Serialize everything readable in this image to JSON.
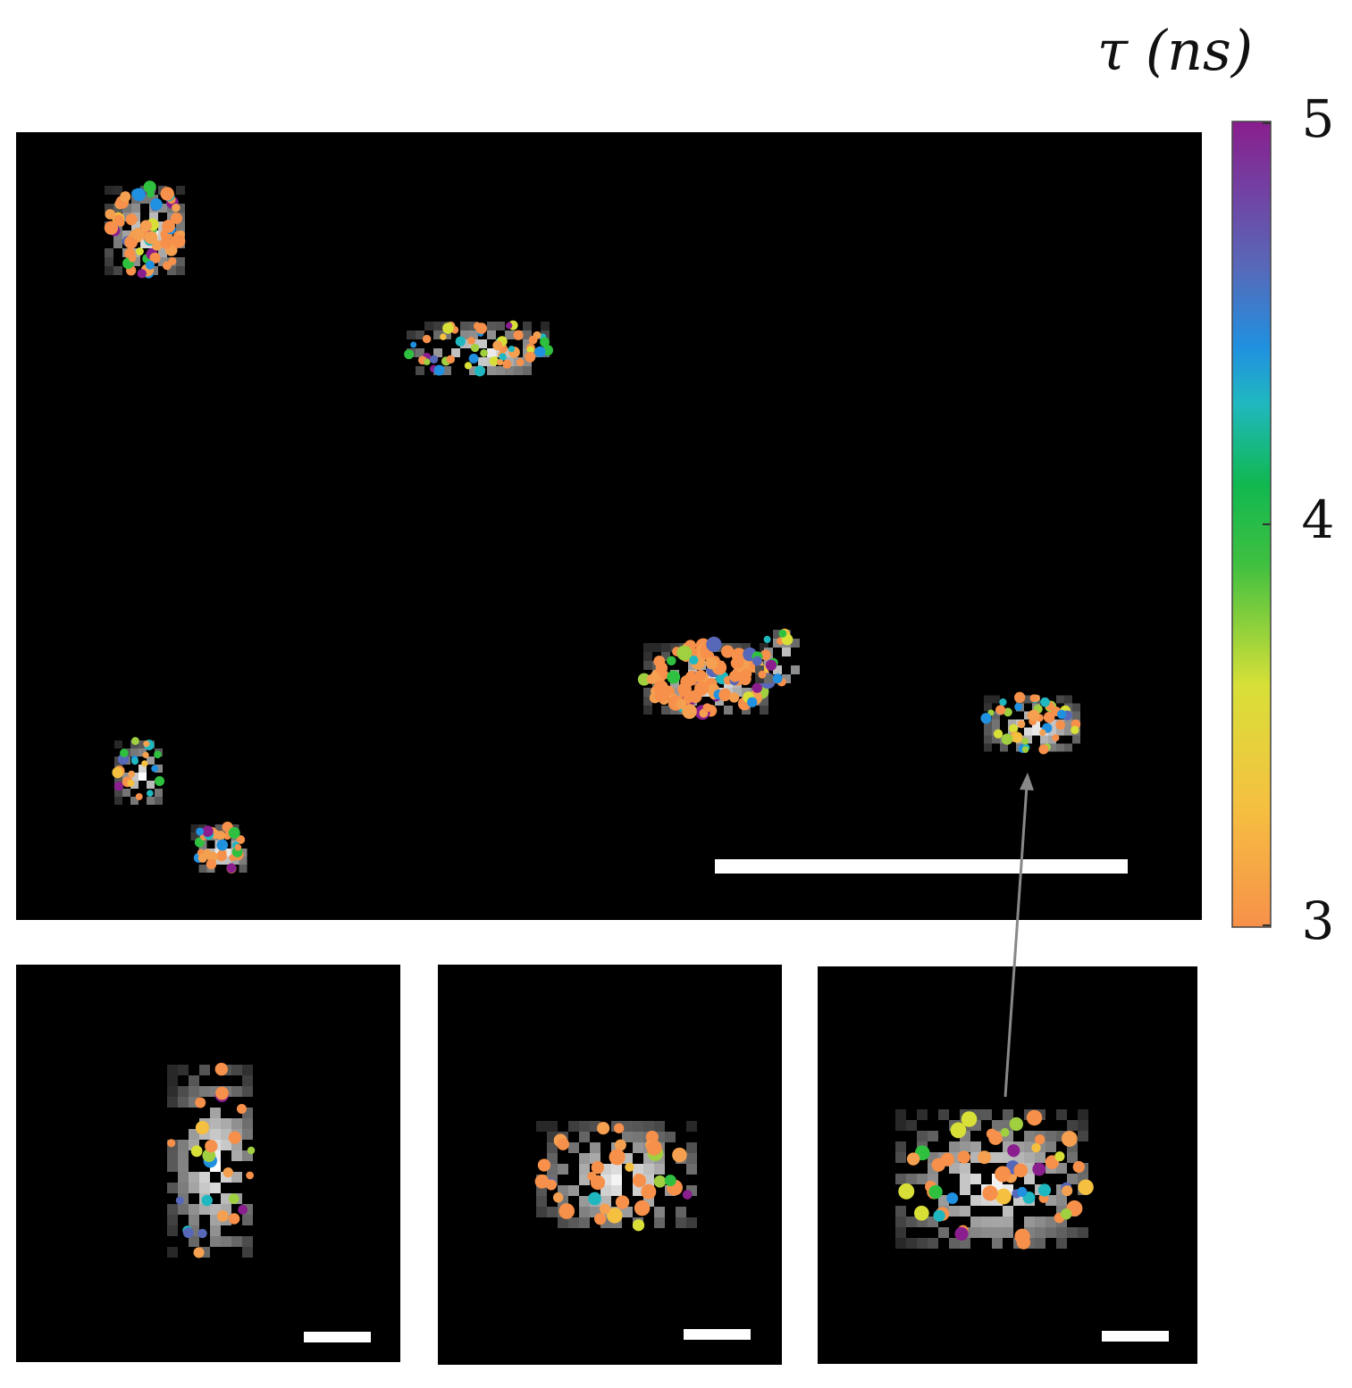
{
  "colorbar": {
    "label": "τ (ns)",
    "lim": [
      3,
      5
    ],
    "ticks": [
      3,
      4,
      5
    ]
  }
}
